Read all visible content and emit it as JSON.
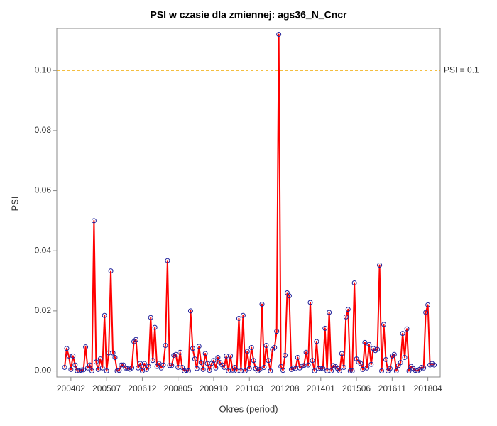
{
  "chart_data": {
    "type": "line",
    "title": "PSI w czasie dla zmiennej: ags36_N_Cncr",
    "x_label": "Okres (period)",
    "y_label": "PSI",
    "categories": [
      null,
      null,
      null,
      "200402",
      null,
      null,
      null,
      null,
      null,
      null,
      null,
      null,
      null,
      null,
      null,
      null,
      null,
      null,
      null,
      null,
      "200507",
      null,
      null,
      null,
      null,
      null,
      null,
      null,
      null,
      null,
      null,
      null,
      null,
      null,
      null,
      null,
      null,
      "200612",
      null,
      null,
      null,
      null,
      null,
      null,
      null,
      null,
      null,
      null,
      null,
      null,
      null,
      null,
      null,
      null,
      "200805",
      null,
      null,
      null,
      null,
      null,
      null,
      null,
      null,
      null,
      null,
      null,
      null,
      null,
      null,
      null,
      null,
      "200910",
      null,
      null,
      null,
      null,
      null,
      null,
      null,
      null,
      null,
      null,
      null,
      null,
      null,
      null,
      null,
      null,
      "201103",
      null,
      null,
      null,
      null,
      null,
      null,
      null,
      null,
      null,
      null,
      null,
      null,
      null,
      null,
      null,
      null,
      "201208",
      null,
      null,
      null,
      null,
      null,
      null,
      null,
      null,
      null,
      null,
      null,
      null,
      null,
      null,
      null,
      null,
      "201401",
      null,
      null,
      null,
      null,
      null,
      null,
      null,
      null,
      null,
      null,
      null,
      null,
      null,
      null,
      null,
      null,
      "201506",
      null,
      null,
      null,
      null,
      null,
      null,
      null,
      null,
      null,
      null,
      null,
      null,
      null,
      null,
      null,
      null,
      "201611",
      null,
      null,
      null,
      null,
      null,
      null,
      null,
      null,
      null,
      null,
      null,
      null,
      null,
      null,
      null,
      null,
      "201804",
      null,
      null,
      null
    ],
    "series": [
      {
        "name": "PSI",
        "color": "#ff0000",
        "marker_color": "#1f1f99",
        "values": [
          0.0012,
          0.0075,
          0.005,
          0.0005,
          0.005,
          0.002,
          0.0,
          0.0,
          0.0003,
          0.0004,
          0.008,
          0.001,
          0.002,
          0.0,
          0.05,
          0.003,
          0.0005,
          0.004,
          0.001,
          0.0185,
          0.0,
          0.006,
          0.0333,
          0.006,
          0.0045,
          0.0,
          0.0002,
          0.002,
          0.002,
          0.001,
          0.0008,
          0.0006,
          0.001,
          0.0098,
          0.0105,
          0.001,
          0.0025,
          0.0,
          0.0025,
          0.0005,
          0.0015,
          0.0178,
          0.0035,
          0.0145,
          0.0015,
          0.0025,
          0.001,
          0.002,
          0.0085,
          0.0367,
          0.0018,
          0.0018,
          0.0052,
          0.0055,
          0.0012,
          0.0062,
          0.0012,
          0.0,
          0.0002,
          0.0,
          0.02,
          0.0075,
          0.004,
          0.0008,
          0.0082,
          0.0028,
          0.0005,
          0.0058,
          0.0025,
          0.0002,
          0.0025,
          0.0035,
          0.001,
          0.0045,
          0.0028,
          0.002,
          0.0012,
          0.005,
          0.0,
          0.005,
          0.0003,
          0.0012,
          0.0,
          0.0175,
          0.0,
          0.0185,
          0.0,
          0.0065,
          0.0008,
          0.0078,
          0.0035,
          0.0008,
          0.0,
          0.0005,
          0.0222,
          0.0012,
          0.0085,
          0.0035,
          0.0,
          0.0072,
          0.0078,
          0.0132,
          0.112,
          0.0015,
          0.0002,
          0.0052,
          0.026,
          0.025,
          0.0005,
          0.001,
          0.0008,
          0.0045,
          0.001,
          0.0015,
          0.0018,
          0.0062,
          0.002,
          0.0228,
          0.0035,
          0.0,
          0.0098,
          0.0008,
          0.0008,
          0.0008,
          0.0142,
          0.0,
          0.0195,
          0.0,
          0.0018,
          0.0015,
          0.0008,
          0.0,
          0.0058,
          0.0012,
          0.018,
          0.0205,
          0.0,
          0.0,
          0.0293,
          0.004,
          0.003,
          0.0025,
          0.0005,
          0.0095,
          0.001,
          0.0088,
          0.0022,
          0.0075,
          0.0068,
          0.0072,
          0.0352,
          0.0,
          0.0155,
          0.0038,
          0.0,
          0.0008,
          0.005,
          0.0055,
          0.0,
          0.0018,
          0.0028,
          0.0125,
          0.0045,
          0.014,
          0.0,
          0.0015,
          0.0008,
          0.0002,
          0.0,
          0.0005,
          0.0012,
          0.001,
          0.0195,
          0.022,
          0.002,
          0.0025,
          0.002
        ]
      }
    ],
    "ylim": [
      -0.002,
      0.114
    ],
    "yticks": [
      {
        "value": 0,
        "label": "0.00"
      },
      {
        "value": 0.02,
        "label": "0.02"
      },
      {
        "value": 0.04,
        "label": "0.04"
      },
      {
        "value": 0.06,
        "label": "0.06"
      },
      {
        "value": 0.08,
        "label": "0.08"
      },
      {
        "value": 0.1,
        "label": "0.10"
      }
    ],
    "reference_line": {
      "value": 0.1,
      "label": "PSI = 0.1",
      "color": "#f0a800"
    }
  }
}
